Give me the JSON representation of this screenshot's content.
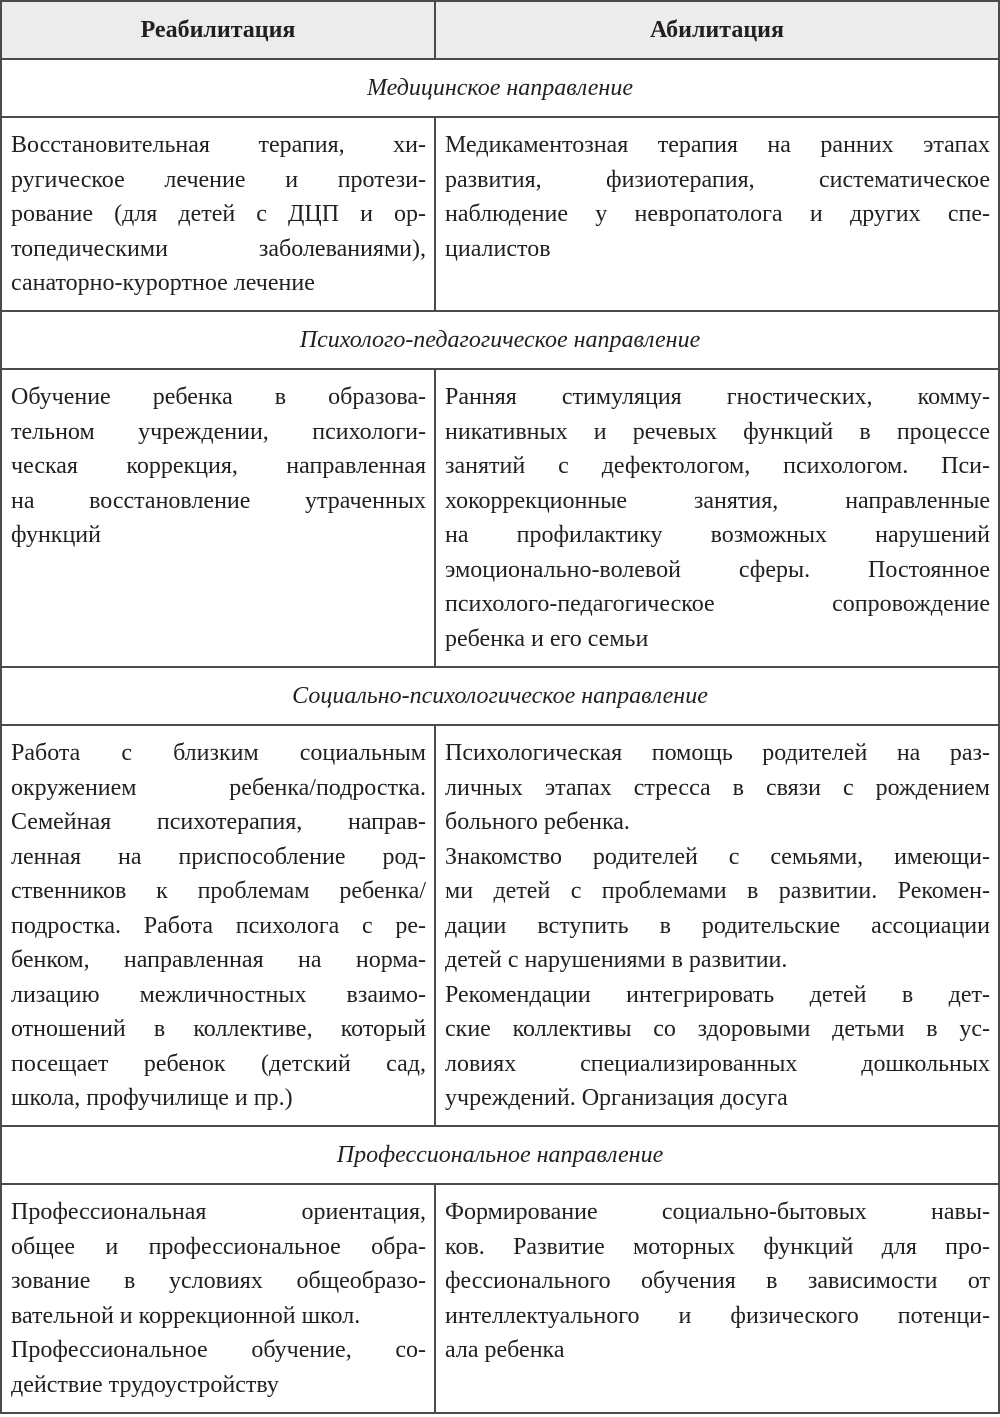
{
  "headers": [
    "Реабилитация",
    "Абилитация"
  ],
  "sections": [
    {
      "title": "Медицинское направление",
      "left": [
        [
          "Восстановительная терапия, хи-",
          "ругическое лечение и протези-",
          "рование (для детей с ДЦП и ор-",
          "топедическими заболеваниями),",
          "санаторно-курортное лечение"
        ]
      ],
      "right": [
        [
          "Медикаментозная терапия на ранних этапах",
          "развития, физиотерапия, систематическое",
          "наблюдение у невропатолога и других спе-",
          "циалистов"
        ]
      ]
    },
    {
      "title": "Психолого-педагогическое направление",
      "left": [
        [
          "Обучение ребенка в образова-",
          "тельном учреждении, психологи-",
          "ческая коррекция, направленная",
          "на восстановление утраченных",
          "функций"
        ]
      ],
      "right": [
        [
          "Ранняя стимуляция гностических, комму-",
          "никативных и речевых функций в процессе",
          "занятий с дефектологом, психологом. Пси-",
          "хокоррекционные занятия, направленные",
          "на профилактику возможных нарушений",
          "эмоционально-волевой сферы. Постоянное",
          "психолого-педагогическое сопровождение",
          "ребенка и его семьи"
        ]
      ]
    },
    {
      "title": "Социально-психологическое направление",
      "left": [
        [
          "Работа с близким социальным",
          "окружением ребенка/подростка.",
          "Семейная психотерапия, направ-",
          "ленная на приспособление род-",
          "ственников к проблемам ребенка/",
          "подростка. Работа психолога с ре-",
          "бенком, направленная на норма-",
          "лизацию межличностных взаимо-",
          "отношений в коллективе, который",
          "посещает ребенок (детский сад,",
          "школа, профучилище и пр.)"
        ]
      ],
      "right": [
        [
          "Психологическая помощь родителей на раз-",
          "личных этапах стресса в связи с рождением",
          "больного ребенка."
        ],
        [
          "Знакомство родителей с семьями, имеющи-",
          "ми детей с проблемами в развитии. Рекомен-",
          "дации вступить в родительские ассоциации",
          "детей с нарушениями в развитии."
        ],
        [
          "Рекомендации интегрировать детей в дет-",
          "ские коллективы со здоровыми детьми в ус-",
          "ловиях специализированных дошкольных",
          "учреждений. Организация досуга"
        ]
      ]
    },
    {
      "title": "Профессиональное направление",
      "left": [
        [
          "Профессиональная ориентация,",
          "общее и профессиональное обра-",
          "зование в условиях общеобразо-",
          "вательной и коррекционной школ."
        ],
        [
          "Профессиональное обучение, со-",
          "действие трудоустройству"
        ]
      ],
      "right": [
        [
          "Формирование социально-бытовых навы-",
          "ков. Развитие моторных функций для про-",
          "фессионального обучения в зависимости от",
          "интеллектуального и физического потенци-",
          "ала ребенка"
        ]
      ]
    }
  ]
}
